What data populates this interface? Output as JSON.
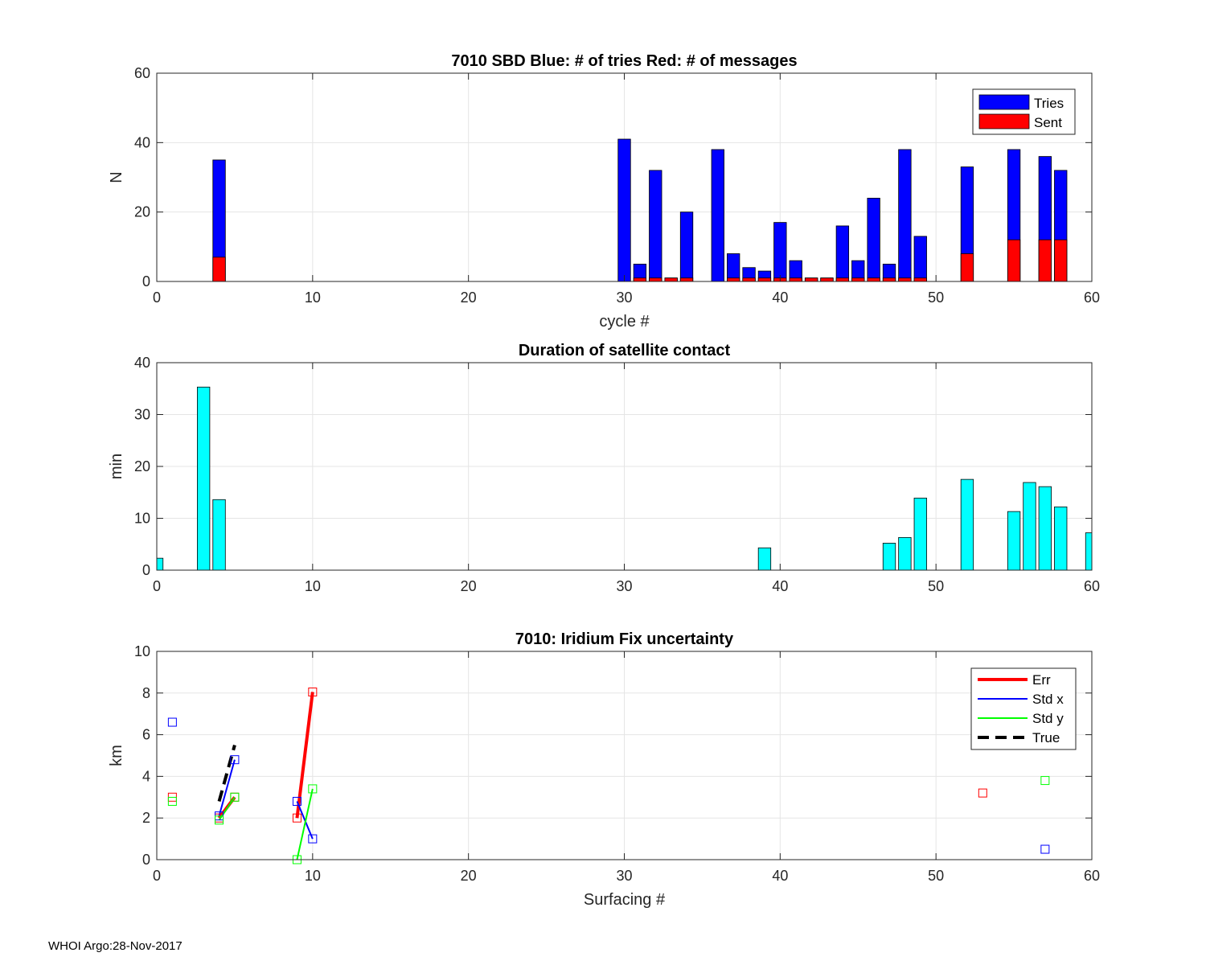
{
  "footer": "WHOI Argo:28-Nov-2017",
  "chart_data": [
    {
      "type": "bar",
      "title": "7010 SBD  Blue: # of tries   Red: # of messages",
      "xlabel": "cycle #",
      "ylabel": "N",
      "xlim": [
        0,
        60
      ],
      "ylim": [
        0,
        60
      ],
      "xticks": [
        0,
        10,
        20,
        30,
        40,
        50,
        60
      ],
      "yticks": [
        0,
        20,
        40,
        60
      ],
      "grid": true,
      "legend_position": "top-right",
      "colors": {
        "Tries": "#0000ff",
        "Sent": "#ff0000"
      },
      "series": [
        {
          "name": "Tries",
          "x": [
            4,
            30,
            31,
            32,
            33,
            34,
            36,
            37,
            38,
            39,
            40,
            41,
            42,
            43,
            44,
            45,
            46,
            47,
            48,
            49,
            52,
            55,
            57,
            58
          ],
          "values": [
            35,
            41,
            5,
            32,
            1,
            20,
            38,
            8,
            4,
            3,
            17,
            6,
            1,
            1,
            16,
            6,
            24,
            5,
            38,
            13,
            33,
            38,
            36,
            32
          ]
        },
        {
          "name": "Sent",
          "x": [
            4,
            30,
            31,
            32,
            33,
            34,
            36,
            37,
            38,
            39,
            40,
            41,
            42,
            43,
            44,
            45,
            46,
            47,
            48,
            49,
            52,
            55,
            57,
            58
          ],
          "values": [
            7,
            0,
            1,
            1,
            1,
            1,
            0,
            1,
            1,
            1,
            1,
            1,
            1,
            1,
            1,
            1,
            1,
            1,
            1,
            1,
            8,
            12,
            12,
            12
          ]
        }
      ]
    },
    {
      "type": "bar",
      "title": "Duration of satellite contact",
      "xlabel": "",
      "ylabel": "min",
      "xlim": [
        0,
        60
      ],
      "ylim": [
        0,
        40
      ],
      "xticks": [
        0,
        10,
        20,
        30,
        40,
        50,
        60
      ],
      "yticks": [
        0,
        10,
        20,
        30,
        40
      ],
      "grid": true,
      "colors": {
        "bars": "#00ffff"
      },
      "x": [
        0,
        3,
        4,
        39,
        47,
        48,
        49,
        52,
        55,
        56,
        57,
        58,
        60
      ],
      "values": [
        2.3,
        35.3,
        13.6,
        4.3,
        5.2,
        6.3,
        13.9,
        17.5,
        11.3,
        16.9,
        16.1,
        12.2,
        7.2
      ]
    },
    {
      "type": "line",
      "title": "7010: Iridium Fix uncertainty",
      "xlabel": "Surfacing #",
      "ylabel": "km",
      "xlim": [
        0,
        60
      ],
      "ylim": [
        0,
        10
      ],
      "xticks": [
        0,
        10,
        20,
        30,
        40,
        50,
        60
      ],
      "yticks": [
        0,
        2,
        4,
        6,
        8,
        10
      ],
      "grid": true,
      "legend_position": "top-right",
      "series": [
        {
          "name": "Err",
          "color": "#ff0000",
          "style": "solid-thick",
          "x": [
            1,
            4,
            5,
            9,
            10,
            53
          ],
          "values": [
            3.0,
            2.0,
            3.0,
            2.0,
            8.05,
            3.2
          ]
        },
        {
          "name": "Std x",
          "color": "#0000ff",
          "style": "solid",
          "x": [
            1,
            4,
            5,
            9,
            10,
            57
          ],
          "values": [
            6.6,
            2.1,
            4.8,
            2.8,
            1.0,
            0.5
          ]
        },
        {
          "name": "Std y",
          "color": "#00ff00",
          "style": "solid",
          "x": [
            1,
            4,
            5,
            9,
            10,
            57
          ],
          "values": [
            2.8,
            1.9,
            3.0,
            0.0,
            3.4,
            3.8
          ]
        },
        {
          "name": "True",
          "color": "#000000",
          "style": "dashed",
          "x": [
            4,
            5
          ],
          "values": [
            2.8,
            5.5
          ]
        }
      ],
      "lines_connect": [
        [
          1,
          2
        ],
        [
          3,
          4
        ]
      ]
    }
  ]
}
